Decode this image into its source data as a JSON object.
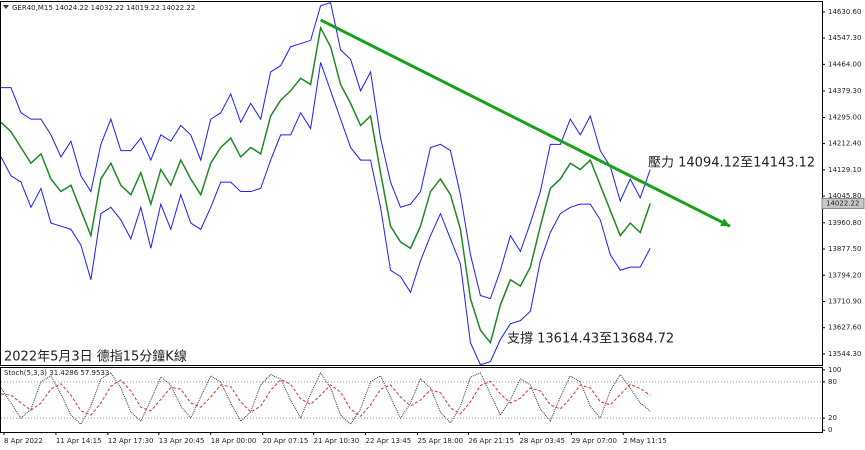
{
  "chart_data": [
    {
      "type": "line",
      "title": "GER40,M15 14024.22 14032.22 14019.22 14022.22",
      "xlim": [
        0,
        82.2
      ],
      "ylim": [
        13506,
        14662
      ],
      "yticks": [
        {
          "value": 14630.6,
          "label": "14630.60"
        },
        {
          "value": 14547.3,
          "label": "14547.30"
        },
        {
          "value": 14464,
          "label": "14464.00"
        },
        {
          "value": 14379.3,
          "label": "14379.30"
        },
        {
          "value": 14295,
          "label": "14295.00"
        },
        {
          "value": 14212.4,
          "label": "14212.40"
        },
        {
          "value": 14129.1,
          "label": "14129.10"
        },
        {
          "value": 14045.8,
          "label": "14045.80"
        },
        {
          "value": 13960.8,
          "label": "13960.80"
        },
        {
          "value": 13877.5,
          "label": "13877.50"
        },
        {
          "value": 13794.2,
          "label": "13794.20"
        },
        {
          "value": 13710.9,
          "label": "13710.90"
        },
        {
          "value": 13627.6,
          "label": "13627.60"
        },
        {
          "value": 13544.3,
          "label": "13544.30"
        }
      ],
      "grid": false,
      "last_price": 14022.22,
      "series": [
        {
          "color": "#1f8a1f",
          "values": [
            14280,
            14250,
            14200,
            14150,
            14180,
            14100,
            14060,
            14080,
            14000,
            13920,
            14100,
            14150,
            14080,
            14050,
            14120,
            14020,
            14130,
            14080,
            14160,
            14100,
            14050,
            14150,
            14200,
            14230,
            14170,
            14200,
            14180,
            14300,
            14350,
            14380,
            14420,
            14400,
            14580,
            14520,
            14400,
            14340,
            14270,
            14300,
            14120,
            13950,
            13900,
            13880,
            13950,
            14060,
            14100,
            14050,
            13940,
            13720,
            13620,
            13580,
            13700,
            13780,
            13760,
            13820,
            13950,
            14070,
            14100,
            14150,
            14130,
            14160,
            14080,
            14000,
            13920,
            13960,
            13930,
            14022.22
          ]
        },
        {
          "color": "#1d1dff",
          "values": [
            14390,
            14390,
            14310,
            14290,
            14290,
            14240,
            14170,
            14220,
            14110,
            14060,
            14210,
            14290,
            14190,
            14190,
            14230,
            14160,
            14240,
            14220,
            14270,
            14240,
            14160,
            14290,
            14310,
            14370,
            14280,
            14340,
            14290,
            14440,
            14460,
            14520,
            14530,
            14540,
            14650,
            14660,
            14510,
            14480,
            14380,
            14440,
            14230,
            14090,
            14010,
            14020,
            14060,
            14200,
            14210,
            14190,
            14050,
            13860,
            13730,
            13720,
            13810,
            13920,
            13870,
            13960,
            14060,
            14210,
            14210,
            14290,
            14240,
            14300,
            14190,
            14140,
            14030,
            14100,
            14040,
            14130
          ]
        },
        {
          "color": "#1d1dff",
          "values": [
            14170,
            14110,
            14090,
            14010,
            14070,
            13960,
            13950,
            13940,
            13890,
            13780,
            13990,
            14010,
            13970,
            13910,
            14010,
            13880,
            14020,
            13940,
            14050,
            13960,
            13940,
            14010,
            14090,
            14090,
            14060,
            14060,
            14070,
            14160,
            14240,
            14240,
            14310,
            14260,
            14470,
            14380,
            14290,
            14200,
            14160,
            14160,
            14010,
            13810,
            13790,
            13740,
            13840,
            13920,
            13990,
            13910,
            13830,
            13580,
            13510,
            13520,
            13590,
            13640,
            13650,
            13680,
            13840,
            13930,
            13990,
            14010,
            14020,
            14020,
            13970,
            13860,
            13810,
            13820,
            13820,
            13880
          ]
        }
      ],
      "trendline": {
        "color": "#1aa11a",
        "start": {
          "x": 32,
          "value": 14605
        },
        "end": {
          "x": 73,
          "value": 13950
        }
      },
      "annotations": [
        "壓力 14094.12至14143.12",
        "支撐 13614.43至13684.72",
        "2022年5月3日 德指15分鐘K線"
      ]
    },
    {
      "type": "line",
      "title": "Stoch(5,3,3) 31.4286 57.9533",
      "xlim": [
        0,
        82.2
      ],
      "ylim": [
        -3,
        103
      ],
      "yticks": [
        100,
        80,
        20,
        0
      ],
      "xticks": [
        {
          "value": 0.3,
          "label": "8 Apr 2022"
        },
        {
          "value": 5.5,
          "label": "11 Apr 14:15"
        },
        {
          "value": 10.7,
          "label": "12 Apr 17:30"
        },
        {
          "value": 15.8,
          "label": "13 Apr 20:45"
        },
        {
          "value": 21,
          "label": "18 Apr 00:00"
        },
        {
          "value": 26.2,
          "label": "20 Apr 07:15"
        },
        {
          "value": 31.3,
          "label": "21 Apr 10:30"
        },
        {
          "value": 36.5,
          "label": "22 Apr 13:45"
        },
        {
          "value": 41.7,
          "label": "25 Apr 18:00"
        },
        {
          "value": 46.8,
          "label": "26 Apr 21:15"
        },
        {
          "value": 51.9,
          "label": "28 Apr 03:45"
        },
        {
          "value": 57.1,
          "label": "29 Apr 07:00"
        },
        {
          "value": 62.3,
          "label": "2 May 11:15"
        }
      ],
      "series": [
        {
          "color": "#333333",
          "values": [
            70,
            45,
            20,
            35,
            80,
            90,
            60,
            25,
            10,
            40,
            85,
            95,
            70,
            30,
            15,
            50,
            88,
            75,
            40,
            20,
            55,
            90,
            80,
            45,
            15,
            30,
            75,
            92,
            85,
            50,
            20,
            60,
            95,
            70,
            25,
            10,
            35,
            80,
            90,
            55,
            20,
            45,
            85,
            70,
            30,
            12,
            40,
            88,
            95,
            60,
            25,
            50,
            85,
            75,
            35,
            15,
            55,
            90,
            80,
            40,
            20,
            65,
            92,
            70,
            45,
            31.4286
          ]
        },
        {
          "color": "#e03030",
          "values": [
            60,
            58,
            45,
            33,
            45,
            68,
            77,
            58,
            32,
            25,
            45,
            73,
            83,
            65,
            38,
            32,
            51,
            71,
            68,
            45,
            38,
            55,
            75,
            72,
            47,
            30,
            40,
            66,
            84,
            76,
            52,
            43,
            58,
            75,
            63,
            35,
            23,
            42,
            68,
            75,
            55,
            40,
            50,
            67,
            62,
            37,
            27,
            47,
            74,
            81,
            60,
            45,
            53,
            70,
            65,
            42,
            35,
            53,
            75,
            70,
            47,
            42,
            59,
            76,
            69,
            57.9533
          ]
        }
      ]
    }
  ]
}
